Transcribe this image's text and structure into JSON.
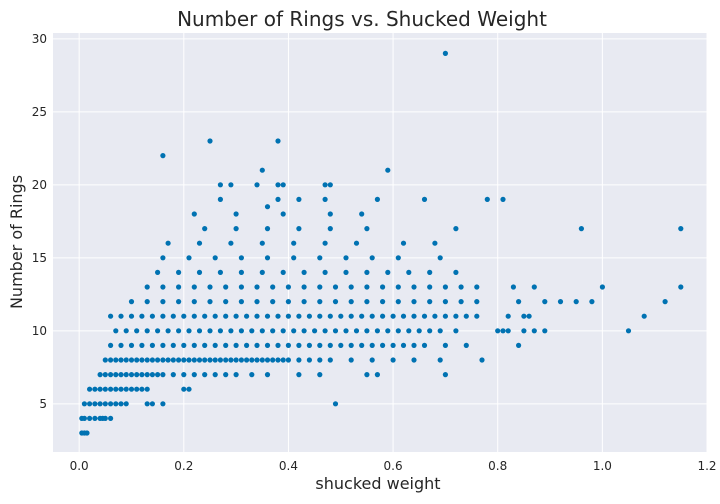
{
  "chart_data": {
    "type": "scatter",
    "title": "Number of Rings vs. Shucked Weight",
    "xlabel": "shucked weight",
    "ylabel": "Number of Rings",
    "xlim": [
      -0.05,
      1.2
    ],
    "ylim": [
      1.7,
      30.4
    ],
    "xticks": [
      0.0,
      0.2,
      0.4,
      0.6,
      0.8,
      1.0,
      1.2
    ],
    "yticks": [
      5,
      10,
      15,
      20,
      25,
      30
    ],
    "xtick_labels": [
      "0.0",
      "0.2",
      "0.4",
      "0.6",
      "0.8",
      "1.0",
      "1.2"
    ],
    "ytick_labels": [
      "5",
      "10",
      "15",
      "20",
      "25",
      "30"
    ],
    "grid": true,
    "background_color": "#e8eaf2",
    "marker_color": "#0072b2",
    "points": [
      [
        0.005,
        3
      ],
      [
        0.01,
        3
      ],
      [
        0.015,
        3
      ],
      [
        0.005,
        4
      ],
      [
        0.01,
        4
      ],
      [
        0.02,
        4
      ],
      [
        0.03,
        4
      ],
      [
        0.04,
        4
      ],
      [
        0.05,
        4
      ],
      [
        0.06,
        4
      ],
      [
        0.045,
        4
      ],
      [
        0.01,
        5
      ],
      [
        0.02,
        5
      ],
      [
        0.03,
        5
      ],
      [
        0.04,
        5
      ],
      [
        0.05,
        5
      ],
      [
        0.06,
        5
      ],
      [
        0.07,
        5
      ],
      [
        0.08,
        5
      ],
      [
        0.09,
        5
      ],
      [
        0.13,
        5
      ],
      [
        0.14,
        5
      ],
      [
        0.16,
        5
      ],
      [
        0.02,
        6
      ],
      [
        0.03,
        6
      ],
      [
        0.04,
        6
      ],
      [
        0.05,
        6
      ],
      [
        0.06,
        6
      ],
      [
        0.07,
        6
      ],
      [
        0.08,
        6
      ],
      [
        0.09,
        6
      ],
      [
        0.1,
        6
      ],
      [
        0.11,
        6
      ],
      [
        0.12,
        6
      ],
      [
        0.13,
        6
      ],
      [
        0.2,
        6
      ],
      [
        0.21,
        6
      ],
      [
        0.04,
        7
      ],
      [
        0.05,
        7
      ],
      [
        0.06,
        7
      ],
      [
        0.07,
        7
      ],
      [
        0.08,
        7
      ],
      [
        0.09,
        7
      ],
      [
        0.1,
        7
      ],
      [
        0.11,
        7
      ],
      [
        0.12,
        7
      ],
      [
        0.13,
        7
      ],
      [
        0.14,
        7
      ],
      [
        0.15,
        7
      ],
      [
        0.16,
        7
      ],
      [
        0.18,
        7
      ],
      [
        0.2,
        7
      ],
      [
        0.22,
        7
      ],
      [
        0.24,
        7
      ],
      [
        0.26,
        7
      ],
      [
        0.28,
        7
      ],
      [
        0.3,
        7
      ],
      [
        0.33,
        7
      ],
      [
        0.36,
        7
      ],
      [
        0.42,
        7
      ],
      [
        0.46,
        7
      ],
      [
        0.05,
        8
      ],
      [
        0.06,
        8
      ],
      [
        0.07,
        8
      ],
      [
        0.08,
        8
      ],
      [
        0.09,
        8
      ],
      [
        0.1,
        8
      ],
      [
        0.11,
        8
      ],
      [
        0.12,
        8
      ],
      [
        0.13,
        8
      ],
      [
        0.14,
        8
      ],
      [
        0.15,
        8
      ],
      [
        0.16,
        8
      ],
      [
        0.17,
        8
      ],
      [
        0.18,
        8
      ],
      [
        0.19,
        8
      ],
      [
        0.2,
        8
      ],
      [
        0.21,
        8
      ],
      [
        0.22,
        8
      ],
      [
        0.23,
        8
      ],
      [
        0.24,
        8
      ],
      [
        0.25,
        8
      ],
      [
        0.26,
        8
      ],
      [
        0.27,
        8
      ],
      [
        0.28,
        8
      ],
      [
        0.29,
        8
      ],
      [
        0.3,
        8
      ],
      [
        0.31,
        8
      ],
      [
        0.32,
        8
      ],
      [
        0.33,
        8
      ],
      [
        0.34,
        8
      ],
      [
        0.35,
        8
      ],
      [
        0.36,
        8
      ],
      [
        0.37,
        8
      ],
      [
        0.38,
        8
      ],
      [
        0.39,
        8
      ],
      [
        0.4,
        8
      ],
      [
        0.42,
        8
      ],
      [
        0.44,
        8
      ],
      [
        0.46,
        8
      ],
      [
        0.48,
        8
      ],
      [
        0.52,
        8
      ],
      [
        0.56,
        8
      ],
      [
        0.6,
        8
      ],
      [
        0.64,
        8
      ],
      [
        0.69,
        8
      ],
      [
        0.77,
        8
      ],
      [
        0.06,
        9
      ],
      [
        0.08,
        9
      ],
      [
        0.1,
        9
      ],
      [
        0.12,
        9
      ],
      [
        0.14,
        9
      ],
      [
        0.16,
        9
      ],
      [
        0.18,
        9
      ],
      [
        0.2,
        9
      ],
      [
        0.22,
        9
      ],
      [
        0.24,
        9
      ],
      [
        0.26,
        9
      ],
      [
        0.28,
        9
      ],
      [
        0.3,
        9
      ],
      [
        0.32,
        9
      ],
      [
        0.34,
        9
      ],
      [
        0.36,
        9
      ],
      [
        0.38,
        9
      ],
      [
        0.4,
        9
      ],
      [
        0.42,
        9
      ],
      [
        0.44,
        9
      ],
      [
        0.46,
        9
      ],
      [
        0.48,
        9
      ],
      [
        0.5,
        9
      ],
      [
        0.52,
        9
      ],
      [
        0.54,
        9
      ],
      [
        0.56,
        9
      ],
      [
        0.58,
        9
      ],
      [
        0.6,
        9
      ],
      [
        0.62,
        9
      ],
      [
        0.64,
        9
      ],
      [
        0.66,
        9
      ],
      [
        0.7,
        9
      ],
      [
        0.74,
        9
      ],
      [
        0.84,
        9
      ],
      [
        0.07,
        10
      ],
      [
        0.09,
        10
      ],
      [
        0.11,
        10
      ],
      [
        0.13,
        10
      ],
      [
        0.15,
        10
      ],
      [
        0.17,
        10
      ],
      [
        0.19,
        10
      ],
      [
        0.21,
        10
      ],
      [
        0.23,
        10
      ],
      [
        0.25,
        10
      ],
      [
        0.27,
        10
      ],
      [
        0.29,
        10
      ],
      [
        0.31,
        10
      ],
      [
        0.33,
        10
      ],
      [
        0.35,
        10
      ],
      [
        0.37,
        10
      ],
      [
        0.39,
        10
      ],
      [
        0.41,
        10
      ],
      [
        0.43,
        10
      ],
      [
        0.45,
        10
      ],
      [
        0.47,
        10
      ],
      [
        0.49,
        10
      ],
      [
        0.51,
        10
      ],
      [
        0.53,
        10
      ],
      [
        0.55,
        10
      ],
      [
        0.57,
        10
      ],
      [
        0.59,
        10
      ],
      [
        0.61,
        10
      ],
      [
        0.63,
        10
      ],
      [
        0.65,
        10
      ],
      [
        0.67,
        10
      ],
      [
        0.69,
        10
      ],
      [
        0.72,
        10
      ],
      [
        0.8,
        10
      ],
      [
        0.81,
        10
      ],
      [
        0.82,
        10
      ],
      [
        0.85,
        10
      ],
      [
        0.87,
        10
      ],
      [
        0.89,
        10
      ],
      [
        1.05,
        10
      ],
      [
        0.06,
        11
      ],
      [
        0.08,
        11
      ],
      [
        0.1,
        11
      ],
      [
        0.12,
        11
      ],
      [
        0.14,
        11
      ],
      [
        0.16,
        11
      ],
      [
        0.18,
        11
      ],
      [
        0.2,
        11
      ],
      [
        0.22,
        11
      ],
      [
        0.24,
        11
      ],
      [
        0.26,
        11
      ],
      [
        0.28,
        11
      ],
      [
        0.3,
        11
      ],
      [
        0.32,
        11
      ],
      [
        0.34,
        11
      ],
      [
        0.36,
        11
      ],
      [
        0.38,
        11
      ],
      [
        0.4,
        11
      ],
      [
        0.42,
        11
      ],
      [
        0.44,
        11
      ],
      [
        0.46,
        11
      ],
      [
        0.48,
        11
      ],
      [
        0.5,
        11
      ],
      [
        0.52,
        11
      ],
      [
        0.54,
        11
      ],
      [
        0.56,
        11
      ],
      [
        0.58,
        11
      ],
      [
        0.6,
        11
      ],
      [
        0.62,
        11
      ],
      [
        0.64,
        11
      ],
      [
        0.66,
        11
      ],
      [
        0.68,
        11
      ],
      [
        0.7,
        11
      ],
      [
        0.72,
        11
      ],
      [
        0.74,
        11
      ],
      [
        0.76,
        11
      ],
      [
        0.82,
        11
      ],
      [
        0.85,
        11
      ],
      [
        0.86,
        11
      ],
      [
        1.08,
        11
      ],
      [
        0.1,
        12
      ],
      [
        0.13,
        12
      ],
      [
        0.16,
        12
      ],
      [
        0.19,
        12
      ],
      [
        0.22,
        12
      ],
      [
        0.25,
        12
      ],
      [
        0.28,
        12
      ],
      [
        0.31,
        12
      ],
      [
        0.34,
        12
      ],
      [
        0.37,
        12
      ],
      [
        0.4,
        12
      ],
      [
        0.43,
        12
      ],
      [
        0.46,
        12
      ],
      [
        0.49,
        12
      ],
      [
        0.52,
        12
      ],
      [
        0.55,
        12
      ],
      [
        0.58,
        12
      ],
      [
        0.61,
        12
      ],
      [
        0.64,
        12
      ],
      [
        0.67,
        12
      ],
      [
        0.7,
        12
      ],
      [
        0.73,
        12
      ],
      [
        0.76,
        12
      ],
      [
        0.84,
        12
      ],
      [
        0.89,
        12
      ],
      [
        0.92,
        12
      ],
      [
        0.95,
        12
      ],
      [
        0.98,
        12
      ],
      [
        1.12,
        12
      ],
      [
        0.13,
        13
      ],
      [
        0.16,
        13
      ],
      [
        0.19,
        13
      ],
      [
        0.22,
        13
      ],
      [
        0.25,
        13
      ],
      [
        0.28,
        13
      ],
      [
        0.31,
        13
      ],
      [
        0.34,
        13
      ],
      [
        0.37,
        13
      ],
      [
        0.4,
        13
      ],
      [
        0.43,
        13
      ],
      [
        0.46,
        13
      ],
      [
        0.49,
        13
      ],
      [
        0.52,
        13
      ],
      [
        0.55,
        13
      ],
      [
        0.58,
        13
      ],
      [
        0.61,
        13
      ],
      [
        0.64,
        13
      ],
      [
        0.67,
        13
      ],
      [
        0.7,
        13
      ],
      [
        0.73,
        13
      ],
      [
        0.76,
        13
      ],
      [
        0.83,
        13
      ],
      [
        0.87,
        13
      ],
      [
        1.0,
        13
      ],
      [
        1.15,
        13
      ],
      [
        0.15,
        14
      ],
      [
        0.19,
        14
      ],
      [
        0.23,
        14
      ],
      [
        0.27,
        14
      ],
      [
        0.31,
        14
      ],
      [
        0.35,
        14
      ],
      [
        0.39,
        14
      ],
      [
        0.43,
        14
      ],
      [
        0.47,
        14
      ],
      [
        0.51,
        14
      ],
      [
        0.55,
        14
      ],
      [
        0.59,
        14
      ],
      [
        0.63,
        14
      ],
      [
        0.67,
        14
      ],
      [
        0.72,
        14
      ],
      [
        0.16,
        15
      ],
      [
        0.21,
        15
      ],
      [
        0.26,
        15
      ],
      [
        0.31,
        15
      ],
      [
        0.36,
        15
      ],
      [
        0.41,
        15
      ],
      [
        0.46,
        15
      ],
      [
        0.51,
        15
      ],
      [
        0.56,
        15
      ],
      [
        0.61,
        15
      ],
      [
        0.69,
        15
      ],
      [
        0.17,
        16
      ],
      [
        0.23,
        16
      ],
      [
        0.29,
        16
      ],
      [
        0.35,
        16
      ],
      [
        0.41,
        16
      ],
      [
        0.47,
        16
      ],
      [
        0.53,
        16
      ],
      [
        0.62,
        16
      ],
      [
        0.68,
        16
      ],
      [
        0.24,
        17
      ],
      [
        0.3,
        17
      ],
      [
        0.36,
        17
      ],
      [
        0.42,
        17
      ],
      [
        0.48,
        17
      ],
      [
        0.55,
        17
      ],
      [
        0.72,
        17
      ],
      [
        0.96,
        17
      ],
      [
        1.15,
        17
      ],
      [
        0.22,
        18
      ],
      [
        0.3,
        18
      ],
      [
        0.39,
        18
      ],
      [
        0.48,
        18
      ],
      [
        0.54,
        18
      ],
      [
        0.36,
        18.5
      ],
      [
        0.27,
        19
      ],
      [
        0.38,
        19
      ],
      [
        0.42,
        19
      ],
      [
        0.47,
        19
      ],
      [
        0.57,
        19
      ],
      [
        0.66,
        19
      ],
      [
        0.78,
        19
      ],
      [
        0.81,
        19
      ],
      [
        0.27,
        20
      ],
      [
        0.29,
        20
      ],
      [
        0.34,
        20
      ],
      [
        0.38,
        20
      ],
      [
        0.39,
        20
      ],
      [
        0.48,
        20
      ],
      [
        0.47,
        20
      ],
      [
        0.35,
        21
      ],
      [
        0.59,
        21
      ],
      [
        0.16,
        22
      ],
      [
        0.25,
        23
      ],
      [
        0.38,
        23
      ],
      [
        0.7,
        29
      ],
      [
        0.49,
        5
      ],
      [
        0.7,
        7
      ],
      [
        0.55,
        7
      ],
      [
        0.57,
        7
      ]
    ]
  }
}
